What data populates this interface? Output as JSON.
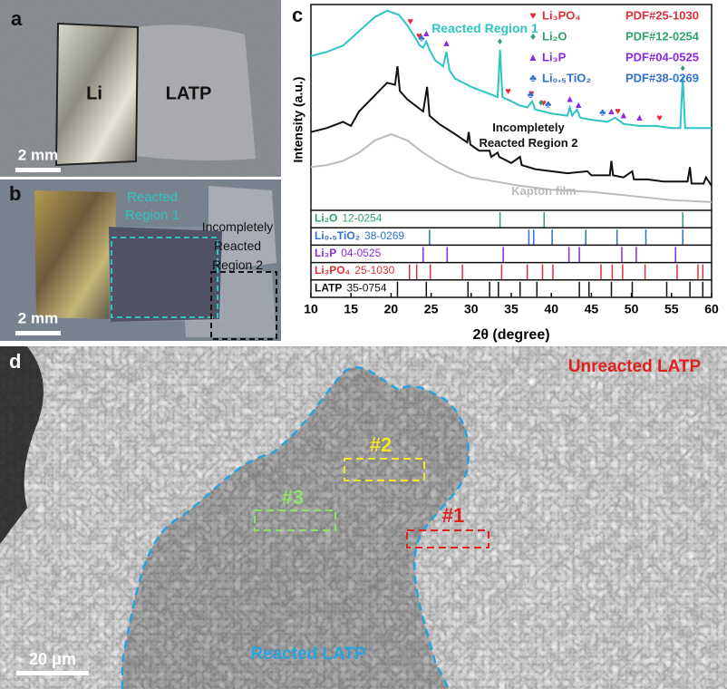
{
  "panel_labels": [
    "a",
    "b",
    "c",
    "d"
  ],
  "photo_a": {
    "foil": "Li",
    "pellet": "LATP",
    "scale_bar": "2 mm"
  },
  "photo_b": {
    "region1": "Reacted Region 1",
    "region2": "Incompletely Reacted Region 2",
    "scale_bar": "2 mm"
  },
  "sem_d": {
    "unreacted": "Unreacted LATP",
    "reacted": "Reacted LATP",
    "spot1": "#1",
    "spot2": "#2",
    "spot3": "#3",
    "scale_bar": "20 μm"
  },
  "chart_data": {
    "type": "line",
    "xlabel": "2θ (degree)",
    "ylabel": "Intensity (a.u.)",
    "xlim": [
      10,
      60
    ],
    "xticks": [
      10,
      15,
      20,
      25,
      30,
      35,
      40,
      45,
      50,
      55,
      60
    ],
    "ylim": [
      0,
      100
    ],
    "series": [
      {
        "name": "Reacted Region 1",
        "color": "#2ec4c4",
        "x": [
          10,
          12,
          14,
          16,
          18,
          19.5,
          21,
          22,
          23,
          23.6,
          24,
          24.4,
          24.8,
          25.5,
          26.5,
          26.9,
          27.3,
          28,
          30,
          32,
          33.3,
          33.6,
          33.9,
          35,
          36,
          37,
          37.6,
          38,
          39,
          40,
          42,
          42.3,
          42.6,
          43.2,
          43.6,
          45,
          47,
          48,
          49,
          51,
          53,
          55,
          56.1,
          56.4,
          56.7,
          58,
          60
        ],
        "values": [
          75,
          77,
          80,
          87,
          94,
          97,
          95,
          90,
          84,
          80,
          79,
          82,
          78,
          73,
          70,
          77,
          68,
          64,
          60,
          57,
          55,
          78,
          55,
          53,
          51,
          50,
          53,
          49,
          48,
          47,
          46,
          50,
          46,
          49,
          45,
          44,
          43,
          45,
          42,
          41,
          41,
          40,
          40,
          65,
          40,
          40,
          40
        ]
      },
      {
        "name": "Incompletely Reacted Region 2",
        "color": "#111111",
        "x": [
          10,
          12,
          14,
          15,
          16,
          18,
          19.5,
          20.5,
          20.8,
          21.1,
          22,
          23,
          24,
          24.5,
          24.8,
          26,
          28,
          29.5,
          29.7,
          29.9,
          31,
          32.3,
          32.5,
          33.3,
          33.5,
          35,
          36.1,
          36.3,
          38,
          40,
          42,
          44.5,
          45,
          47.3,
          47.5,
          47.7,
          49,
          50.1,
          50.3,
          52,
          54,
          55,
          57,
          57.3,
          57.5,
          59,
          59.3,
          60
        ],
        "values": [
          38,
          40,
          43,
          41,
          48,
          56,
          62,
          61,
          70,
          58,
          54,
          51,
          48,
          60,
          46,
          42,
          37,
          33,
          38,
          32,
          29,
          29,
          26,
          28,
          26,
          23,
          26,
          22,
          20,
          19,
          18,
          19,
          17,
          17,
          24,
          17,
          16,
          19,
          15,
          15,
          14,
          14,
          14,
          21,
          13,
          13,
          16,
          12
        ]
      },
      {
        "name": "Kapton film",
        "color": "#bbbbbb",
        "x": [
          10,
          12,
          14,
          16,
          18,
          20,
          22,
          24,
          26,
          28,
          30,
          33,
          36,
          40,
          45,
          50,
          55,
          60
        ],
        "values": [
          21,
          22,
          24,
          28,
          34,
          37,
          34,
          28,
          23,
          19,
          16,
          14,
          12,
          10,
          9,
          7,
          5,
          4
        ]
      }
    ],
    "phases": [
      {
        "symbol": "♥",
        "name": "Li₃PO₄",
        "pdf": "PDF#25-1030",
        "color": "#e0303a",
        "peaks": [
          22.4,
          23.5,
          34.6,
          37.5,
          39,
          48.3,
          53.5
        ]
      },
      {
        "symbol": "♦",
        "name": "Li₂O",
        "pdf": "PDF#12-0254",
        "color": "#2ea36b",
        "peaks": [
          33.6,
          38.7,
          56.4
        ]
      },
      {
        "symbol": "▲",
        "name": "Li₃P",
        "pdf": "PDF#04-0525",
        "color": "#8a2be2",
        "peaks": [
          24.4,
          26.9,
          42.3,
          43.4,
          47.5,
          49,
          51
        ]
      },
      {
        "symbol": "♣",
        "name": "Li₀.₅TiO₂",
        "pdf": "PDF#38-0269",
        "color": "#2f6fd0",
        "peaks": [
          23.8,
          37.4,
          39.6,
          46.4
        ]
      }
    ],
    "references": [
      {
        "name": "Li₂O",
        "card": "12-0254",
        "color": "#2ea36b",
        "sticks": [
          33.6,
          39.1,
          56.4
        ]
      },
      {
        "name": "Li₀.₅TiO₂",
        "card": "38-0269",
        "color": "#2f6fd0",
        "sticks": [
          24.8,
          37.2,
          37.8,
          40.1,
          44.3,
          48.2,
          51.8,
          56.4
        ]
      },
      {
        "name": "Li₃P",
        "card": "04-0525",
        "color": "#8a2be2",
        "sticks": [
          24,
          27,
          34,
          42.2,
          43.5,
          48.8,
          50.6,
          55.5
        ]
      },
      {
        "name": "Li₃PO₄",
        "card": "25-1030",
        "color": "#e0303a",
        "sticks": [
          22.3,
          23.2,
          24.9,
          28.9,
          33.8,
          37,
          38.9,
          40.2,
          46.2,
          47.6,
          48.9,
          51.7,
          55.7,
          58.3,
          58.9
        ]
      },
      {
        "name": "LATP",
        "card": "35-0754",
        "color": "#111111",
        "sticks": [
          20.8,
          24.4,
          29.6,
          32.3,
          33.4,
          36.1,
          38.2,
          43.5,
          44.7,
          47.5,
          50.1,
          54.4,
          57.3,
          58.9
        ]
      }
    ]
  }
}
